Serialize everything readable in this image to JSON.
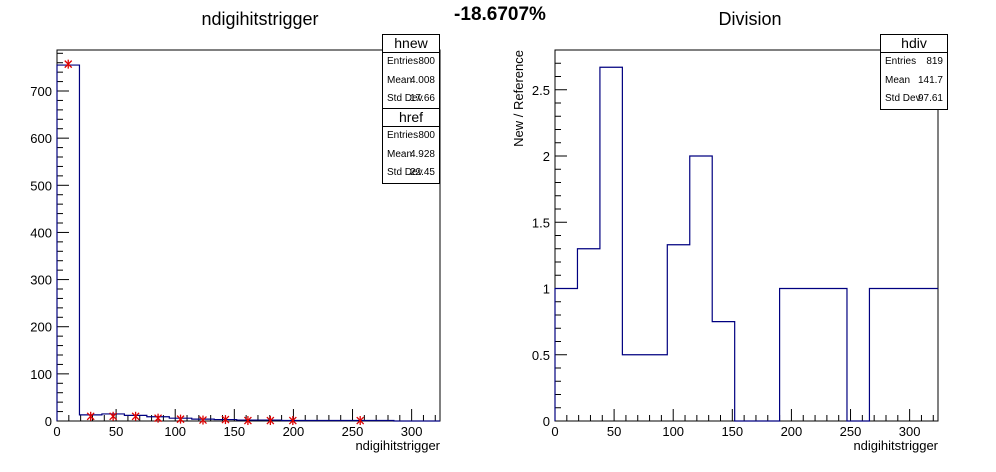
{
  "header": {
    "percent": "-18.6707%"
  },
  "stat_boxes": {
    "hnew": {
      "title": "hnew",
      "rows": [
        {
          "label": "Entries",
          "value": "800"
        },
        {
          "label": "Mean",
          "value": "4.008"
        },
        {
          "label": "Std Dev",
          "value": "17.66"
        }
      ]
    },
    "href": {
      "title": "href",
      "rows": [
        {
          "label": "Entries",
          "value": "800"
        },
        {
          "label": "Mean",
          "value": "4.928"
        },
        {
          "label": "Std Dev",
          "value": "22.45"
        }
      ]
    },
    "hdiv": {
      "title": "hdiv",
      "rows": [
        {
          "label": "Entries",
          "value": "819"
        },
        {
          "label": "Mean",
          "value": "141.7"
        },
        {
          "label": "Std Dev",
          "value": "97.61"
        }
      ]
    }
  },
  "chart_data": [
    {
      "type": "histogram",
      "title": "ndigihitstrigger",
      "xlabel": "ndigihitstrigger",
      "ylabel": "",
      "xlim": [
        0,
        324
      ],
      "ylim": [
        0,
        787
      ],
      "x_ticks": [
        0,
        50,
        100,
        150,
        200,
        250,
        300
      ],
      "y_ticks": [
        0,
        100,
        200,
        300,
        400,
        500,
        600,
        700
      ],
      "grid": false,
      "legend": "top-right",
      "colors": {
        "hnew": "#dd0000",
        "href": "#000080"
      },
      "series": [
        {
          "name": "href",
          "style": "step",
          "bin_edges": [
            0,
            19,
            38,
            57,
            76,
            95,
            114,
            133,
            152,
            171,
            190,
            209,
            228,
            247,
            266,
            285,
            304,
            324
          ],
          "values": [
            755,
            13,
            15,
            12,
            9,
            6,
            4,
            3,
            2,
            2,
            1,
            1,
            1,
            1,
            1,
            0,
            0
          ]
        },
        {
          "name": "hnew",
          "style": "markers",
          "x": [
            9.5,
            28.5,
            47.5,
            66.5,
            85.5,
            104.5,
            123.5,
            142.5,
            161.5,
            180.5,
            199.5,
            256.5
          ],
          "y": [
            757,
            10,
            10,
            10,
            6,
            4,
            2,
            3,
            1,
            1,
            1,
            1
          ]
        }
      ]
    },
    {
      "type": "histogram",
      "title": "Division",
      "xlabel": "ndigihitstrigger",
      "ylabel": "New / Reference",
      "xlim": [
        0,
        324
      ],
      "ylim": [
        0,
        2.8
      ],
      "x_ticks": [
        0,
        50,
        100,
        150,
        200,
        250,
        300
      ],
      "y_ticks": [
        0,
        0.5,
        1,
        1.5,
        2,
        2.5
      ],
      "grid": false,
      "legend": "top-right",
      "colors": {
        "hdiv": "#000080"
      },
      "series": [
        {
          "name": "hdiv",
          "style": "step",
          "bin_edges": [
            0,
            19,
            38,
            57,
            76,
            95,
            114,
            133,
            152,
            171,
            190,
            209,
            228,
            247,
            266,
            285,
            304,
            324
          ],
          "values": [
            1,
            1.3,
            2.67,
            0.5,
            0.5,
            1.33,
            2,
            0.75,
            0,
            0,
            1,
            1,
            1,
            0,
            1,
            1,
            1
          ]
        }
      ]
    }
  ]
}
